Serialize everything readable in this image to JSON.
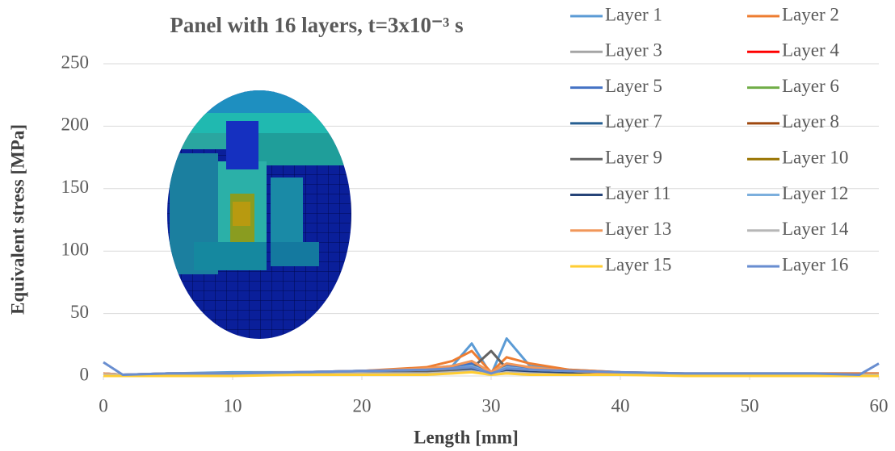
{
  "chart_data": {
    "type": "line",
    "title": "Panel with 16 layers, t=3x10⁻³ s",
    "x_label": "Length [mm]",
    "y_label": "Equivalent stress [MPa]",
    "xlim": [
      0,
      60
    ],
    "xticks": [
      0,
      10,
      20,
      30,
      40,
      50,
      60
    ],
    "ylim": [
      0,
      250
    ],
    "yticks": [
      0,
      50,
      100,
      150,
      200,
      250
    ],
    "grid": true,
    "legend": "top-right",
    "x": [
      0,
      1.5,
      5,
      10,
      15,
      20,
      25,
      27,
      28.5,
      30,
      31.2,
      33,
      36,
      40,
      45,
      50,
      55,
      58.5,
      60
    ],
    "series": [
      {
        "name": "Layer 1",
        "color": "#5b9bd5",
        "values": [
          2,
          1,
          2,
          3,
          3,
          4,
          6,
          8,
          26,
          1,
          30,
          8,
          5,
          3,
          2,
          2,
          2,
          2,
          2
        ]
      },
      {
        "name": "Layer 2",
        "color": "#ed7d31",
        "values": [
          2,
          1,
          2,
          2,
          3,
          4,
          7,
          12,
          20,
          3,
          15,
          10,
          5,
          3,
          2,
          2,
          2,
          2,
          2
        ]
      },
      {
        "name": "Layer 3",
        "color": "#a5a5a5",
        "values": [
          1,
          1,
          1,
          1,
          2,
          3,
          4,
          6,
          9,
          2,
          8,
          5,
          3,
          2,
          1,
          1,
          1,
          1,
          1
        ]
      },
      {
        "name": "Layer 4",
        "color": "#ff0000",
        "values": [
          1,
          1,
          1,
          1,
          1,
          2,
          3,
          4,
          6,
          2,
          5,
          3,
          2,
          1,
          1,
          1,
          1,
          1,
          1
        ]
      },
      {
        "name": "Layer 5",
        "color": "#4472c4",
        "values": [
          2,
          1,
          2,
          2,
          3,
          4,
          5,
          7,
          10,
          2,
          9,
          6,
          4,
          2,
          1,
          1,
          1,
          1,
          1
        ]
      },
      {
        "name": "Layer 6",
        "color": "#70ad47",
        "values": [
          1,
          1,
          1,
          1,
          2,
          2,
          3,
          5,
          8,
          2,
          7,
          4,
          2,
          1,
          1,
          1,
          1,
          1,
          1
        ]
      },
      {
        "name": "Layer 7",
        "color": "#255e91",
        "values": [
          1,
          1,
          1,
          1,
          2,
          3,
          4,
          6,
          8,
          2,
          7,
          5,
          3,
          2,
          1,
          1,
          1,
          1,
          1
        ]
      },
      {
        "name": "Layer 8",
        "color": "#9e480e",
        "values": [
          1,
          1,
          1,
          1,
          1,
          2,
          3,
          5,
          7,
          3,
          6,
          4,
          2,
          1,
          1,
          1,
          1,
          1,
          1
        ]
      },
      {
        "name": "Layer 9",
        "color": "#636363",
        "values": [
          1,
          1,
          1,
          1,
          1,
          2,
          3,
          4,
          6,
          20,
          6,
          4,
          2,
          1,
          1,
          1,
          1,
          1,
          1
        ]
      },
      {
        "name": "Layer 10",
        "color": "#997300",
        "values": [
          1,
          1,
          1,
          1,
          1,
          1,
          2,
          3,
          4,
          3,
          4,
          3,
          2,
          1,
          1,
          1,
          1,
          1,
          1
        ]
      },
      {
        "name": "Layer 11",
        "color": "#264478",
        "values": [
          1,
          1,
          1,
          1,
          1,
          1,
          2,
          3,
          5,
          2,
          4,
          3,
          2,
          1,
          1,
          1,
          1,
          1,
          1
        ]
      },
      {
        "name": "Layer 12",
        "color": "#7cafdd",
        "values": [
          2,
          1,
          2,
          2,
          3,
          4,
          5,
          6,
          8,
          2,
          7,
          5,
          4,
          2,
          1,
          1,
          1,
          1,
          1
        ]
      },
      {
        "name": "Layer 13",
        "color": "#f1975a",
        "values": [
          2,
          1,
          2,
          2,
          3,
          4,
          6,
          8,
          12,
          3,
          10,
          7,
          4,
          2,
          1,
          1,
          1,
          1,
          1
        ]
      },
      {
        "name": "Layer 14",
        "color": "#b7b7b7",
        "values": [
          1,
          1,
          1,
          1,
          1,
          2,
          2,
          3,
          4,
          1,
          3,
          2,
          1,
          1,
          1,
          1,
          1,
          1,
          1
        ]
      },
      {
        "name": "Layer 15",
        "color": "#ffcd33",
        "values": [
          0,
          0,
          0,
          0,
          1,
          1,
          1,
          2,
          3,
          1,
          2,
          1,
          1,
          1,
          0,
          0,
          0,
          0,
          0
        ]
      },
      {
        "name": "Layer 16",
        "color": "#698ed0",
        "values": [
          11,
          1,
          2,
          2,
          3,
          4,
          5,
          6,
          7,
          2,
          6,
          5,
          4,
          3,
          2,
          2,
          2,
          1,
          10
        ]
      }
    ]
  }
}
